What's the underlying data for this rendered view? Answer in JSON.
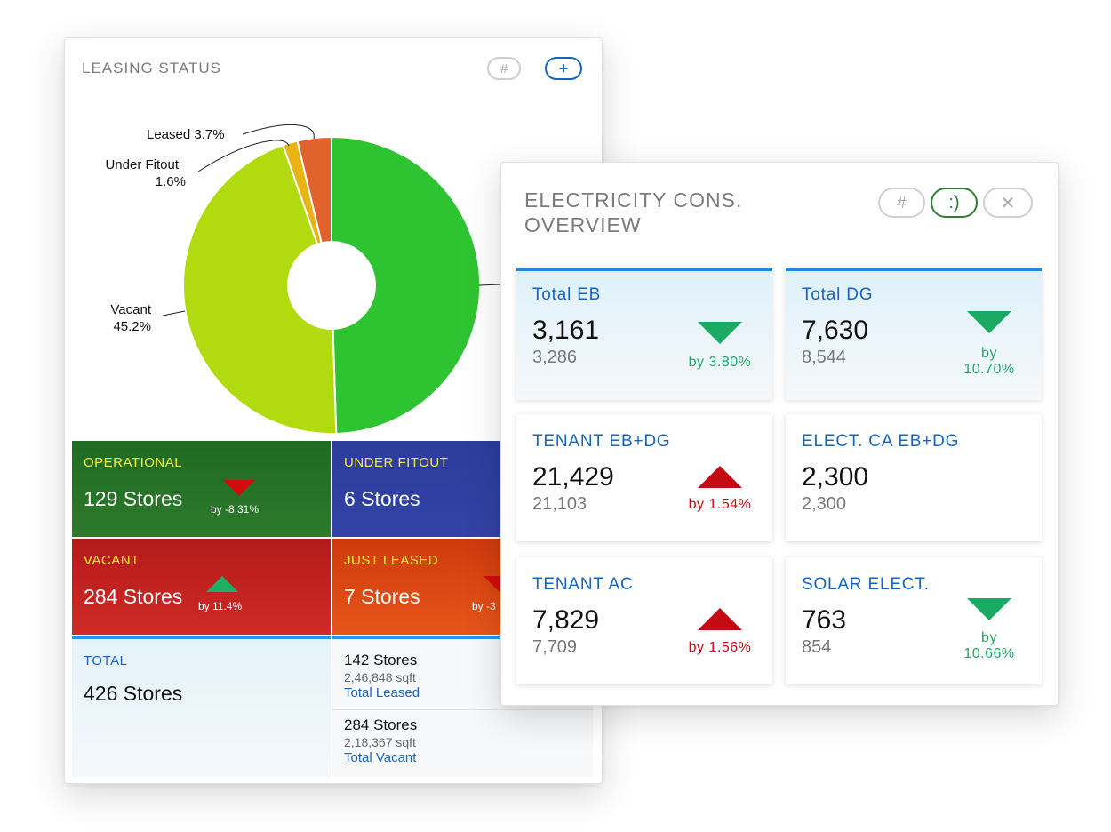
{
  "leasing": {
    "title": "LEASING STATUS",
    "buttons": {
      "hash": "#",
      "plus": "+"
    },
    "pie_labels": {
      "leased": "Leased 3.7%",
      "under_fitout_1": "Under Fitout",
      "under_fitout_2": "1.6%",
      "vacant_1": "Vacant",
      "vacant_2": "45.2%"
    },
    "tiles": {
      "operational": {
        "title": "OPERATIONAL",
        "value": "129 Stores",
        "change": "by -8.31%"
      },
      "under_fitout": {
        "title": "UNDER FITOUT",
        "value": "6 Stores"
      },
      "vacant": {
        "title": "VACANT",
        "value": "284 Stores",
        "change": "by 11.4%"
      },
      "just_leased": {
        "title": "JUST LEASED",
        "value": "7 Stores",
        "change": "by -3"
      },
      "total": {
        "title": "TOTAL",
        "value": "426 Stores"
      }
    },
    "summary": {
      "leased": {
        "stores": "142 Stores",
        "sqft": "2,46,848 sqft",
        "label": "Total Leased"
      },
      "vacant": {
        "stores": "284 Stores",
        "sqft": "2,18,367 sqft",
        "label": "Total Vacant"
      }
    },
    "colors": {
      "operational": "#2ec331",
      "vacant": "#b2db0f",
      "under_fitout": "#e9b314",
      "leased": "#e0622c"
    }
  },
  "chart_data": {
    "type": "pie",
    "categories": [
      "Operational",
      "Vacant",
      "Under Fitout",
      "Leased"
    ],
    "values": [
      49.5,
      45.2,
      1.6,
      3.7
    ],
    "labels": [
      "",
      "Vacant 45.2%",
      "Under Fitout 1.6%",
      "Leased 3.7%"
    ],
    "donut": true
  },
  "electricity": {
    "title_line1": "ELECTRICITY CONS.",
    "title_line2": "OVERVIEW",
    "buttons": {
      "hash": "#",
      "smile": ":)",
      "close": "✕"
    },
    "tiles": [
      {
        "title": "Total EB",
        "value": "3,161",
        "previous": "3,286",
        "by1": "by 3.80%",
        "by2": "",
        "trend": "down",
        "color": "#1aaa64"
      },
      {
        "title": "Total DG",
        "value": "7,630",
        "previous": "8,544",
        "by1": "by",
        "by2": "10.70%",
        "trend": "down",
        "color": "#1aaa64"
      },
      {
        "title": "TENANT EB+DG",
        "value": "21,429",
        "previous": "21,103",
        "by1": "by 1.54%",
        "by2": "",
        "trend": "up",
        "color": "#c40a12"
      },
      {
        "title": "ELECT. CA EB+DG",
        "value": "2,300",
        "previous": "2,300",
        "by1": "",
        "by2": "",
        "trend": "none",
        "color": ""
      },
      {
        "title": "TENANT AC",
        "value": "7,829",
        "previous": "7,709",
        "by1": "by 1.56%",
        "by2": "",
        "trend": "up",
        "color": "#c40a12"
      },
      {
        "title": "SOLAR ELECT.",
        "value": "763",
        "previous": "854",
        "by1": "by",
        "by2": "10.66%",
        "trend": "down",
        "color": "#1aaa64"
      }
    ]
  }
}
